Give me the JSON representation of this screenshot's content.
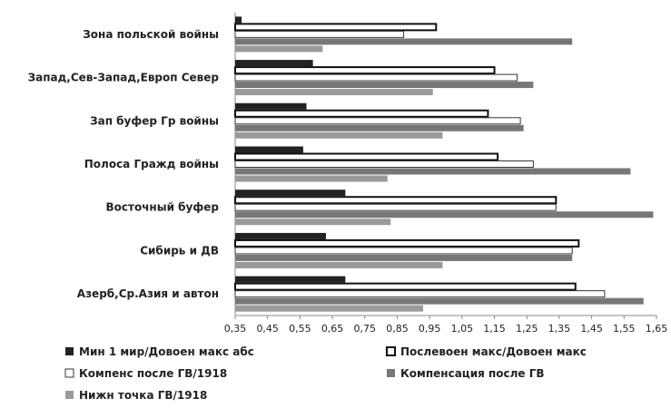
{
  "chart_data": {
    "type": "bar",
    "orientation": "horizontal",
    "categories": [
      "Зона польской войны",
      "Запад,Сев-Запад,Европ  Север",
      "Зап буфер Гр войны",
      "Полоса Гражд войны",
      "Восточный буфер",
      "Сибирь и ДВ",
      "Азерб,Ср.Азия и автон"
    ],
    "series": [
      {
        "name": "Мин 1 мир/Довоен макс абс",
        "color": "#222222",
        "style": "solid",
        "values": [
          0.37,
          0.59,
          0.57,
          0.56,
          0.69,
          0.63,
          0.69
        ]
      },
      {
        "name": "Послевоен макс/Довоен макс",
        "color": "#ffffff",
        "style": "outline-thick",
        "values": [
          0.97,
          1.15,
          1.13,
          1.16,
          1.34,
          1.41,
          1.4
        ]
      },
      {
        "name": "Компенс после ГВ/1918",
        "color": "#ffffff",
        "style": "outline-thin",
        "values": [
          0.87,
          1.22,
          1.23,
          1.27,
          1.34,
          1.39,
          1.49
        ]
      },
      {
        "name": "Компенсация после ГВ",
        "color": "#777777",
        "style": "solid",
        "values": [
          1.39,
          1.27,
          1.24,
          1.57,
          1.64,
          1.39,
          1.61
        ]
      },
      {
        "name": "Нижн точка ГВ/1918",
        "color": "#9a9a9a",
        "style": "solid",
        "values": [
          0.62,
          0.96,
          0.99,
          0.82,
          0.83,
          0.99,
          0.93
        ]
      }
    ],
    "xlim": [
      0.35,
      1.65
    ],
    "xticks": [
      "0,35",
      "0,45",
      "0,55",
      "0,65",
      "0,75",
      "0,85",
      "0,95",
      "1,05",
      "1,15",
      "1,25",
      "1,35",
      "1,45",
      "1,55",
      "1,65"
    ],
    "title": "",
    "xlabel": "",
    "ylabel": "",
    "grid": true,
    "legend_position": "bottom"
  }
}
